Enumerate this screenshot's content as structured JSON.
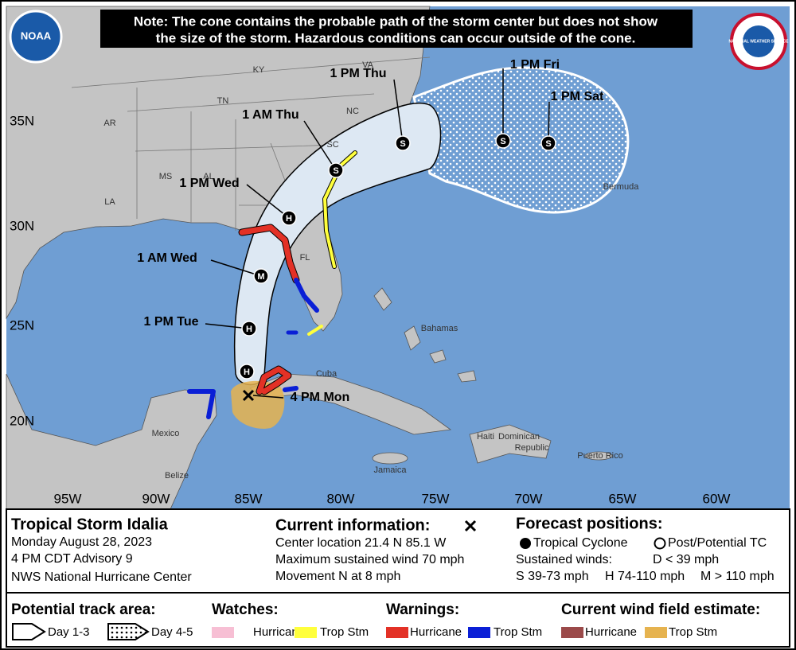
{
  "note": [
    "Note: The cone contains the probable path of the storm center but does not show",
    "the size of the storm. Hazardous conditions can occur outside of the cone."
  ],
  "logos": {
    "noaa": "NOAA",
    "nws": "NATIONAL WEATHER SERVICE"
  },
  "map": {
    "latitude_labels": [
      "35N",
      "30N",
      "25N",
      "20N"
    ],
    "longitude_labels": [
      "95W",
      "90W",
      "85W",
      "80W",
      "75W",
      "70W",
      "65W",
      "60W"
    ],
    "places": [
      "KY",
      "VA",
      "TN",
      "NC",
      "AR",
      "SC",
      "MS",
      "AL",
      "LA",
      "FL",
      "Bermuda",
      "Bahamas",
      "Cuba",
      "Mexico",
      "Belize",
      "Jamaica",
      "Haiti",
      "Dominican",
      "Republic",
      "Puerto Rico"
    ],
    "current_position": "4 PM Mon",
    "forecast_points": [
      {
        "time": null,
        "marker": "H"
      },
      {
        "time": "1 PM Tue",
        "marker": "H"
      },
      {
        "time": "1 AM Wed",
        "marker": "M"
      },
      {
        "time": "1 PM Wed",
        "marker": "H"
      },
      {
        "time": "1 AM Thu",
        "marker": "S"
      },
      {
        "time": "1 PM Thu",
        "marker": "S"
      },
      {
        "time": "1 PM Fri",
        "marker": "S"
      },
      {
        "time": "1 PM Sat",
        "marker": "S"
      }
    ]
  },
  "storm_info": {
    "name": "Tropical Storm Idalia",
    "date": "Monday August 28, 2023",
    "advisory": "4 PM CDT Advisory 9",
    "source": "NWS National Hurricane Center"
  },
  "current_information": {
    "heading": "Current information:",
    "lines": [
      "Center location 21.4 N 85.1 W",
      "Maximum sustained wind 70 mph",
      "Movement N at 8 mph"
    ]
  },
  "forecast_positions": {
    "heading": "Forecast positions:",
    "tropical_cyclone": "Tropical Cyclone",
    "post_tropical": "Post/Potential TC",
    "sustained_winds": "Sustained winds:",
    "d": "D < 39 mph",
    "s": "S 39-73 mph",
    "h": "H 74-110 mph",
    "m": "M > 110 mph"
  },
  "legend": {
    "track_area": {
      "heading": "Potential track area:",
      "day_1_3": "Day 1-3",
      "day_4_5": "Day 4-5"
    },
    "watches": {
      "heading": "Watches:",
      "hurricane": "Hurricane",
      "tropical_storm": "Trop Stm"
    },
    "warnings": {
      "heading": "Warnings:",
      "hurricane": "Hurricane",
      "tropical_storm": "Trop Stm"
    },
    "wind_field": {
      "heading": "Current wind field estimate:",
      "hurricane": "Hurricane",
      "tropical_storm": "Trop Stm"
    }
  }
}
